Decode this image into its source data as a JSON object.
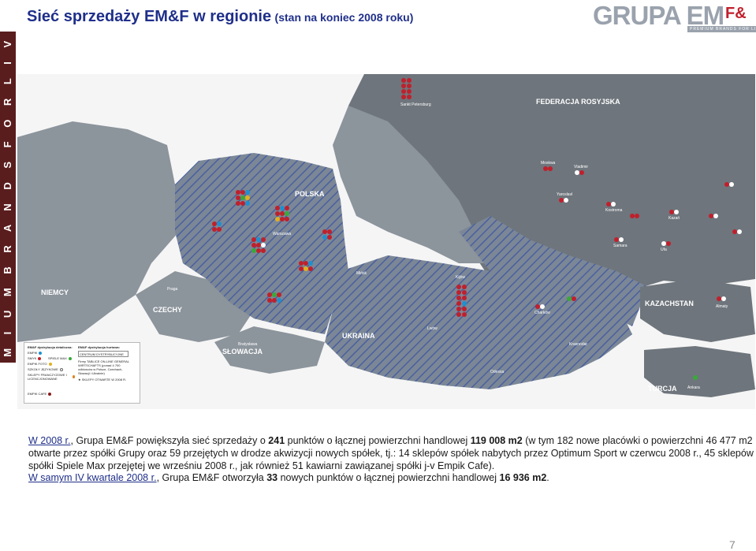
{
  "header": {
    "title_main": "Sieć sprzedaży EM&F w regionie",
    "title_sub": "(stan na koniec 2008 roku)"
  },
  "logo": {
    "name": "GRUPA EM",
    "amp": "F&",
    "tagline": "PREMIUM BRANDS FOR LIVING"
  },
  "sidebar": {
    "text": "P R E M I U M   B R A N D S   F O R   L I V I N G"
  },
  "map": {
    "countries": {
      "russia": "FEDERACJA ROSYJSKA",
      "poland": "POLSKA",
      "germany": "NIEMCY",
      "czech": "CZECHY",
      "slovakia": "SŁOWACJA",
      "ukraine": "UKRAINA",
      "kazakhstan": "KAZACHSTAN",
      "turkey": "TURCJA"
    },
    "cities": {
      "st_petersburg": "Sankt Petersburg",
      "moscow": "Moskwa",
      "vladimir": "Vladimir",
      "yaroslavl": "Yaroslavl",
      "kostroma": "Kostroma",
      "krasnodar": "Krasnodar",
      "kiev": "Kijów",
      "lviv": "Lwów",
      "kharkiv": "Charków",
      "odessa": "Odessa",
      "kazan": "Kazań",
      "samara": "Samara",
      "ufa": "Ufa",
      "almaty": "Almaty",
      "istanbul": "Stambuł",
      "ankara": "Ankara",
      "prague": "Praga",
      "bratislava": "Bratysława",
      "warsaw": "Warszawa",
      "minsk": "Mińsk"
    },
    "colors": {
      "sea": "#f5f5f5",
      "land": "#8c949c",
      "russia": "#6e757c",
      "hatch": "#4a5fa0",
      "store_red": "#c0202c",
      "store_blue": "#1e90d0",
      "store_green": "#3aa83a",
      "store_yellow": "#e0b020",
      "store_white": "#ffffff",
      "store_darkred": "#8a1a1a"
    }
  },
  "legend": {
    "retail_title": "EM&F dystrybucja detaliczna:",
    "wholesale_title": "EM&F dystrybucja hurtowa:",
    "retail_items": [
      {
        "label": "EMPIK",
        "color": "#1e90d0"
      },
      {
        "label": "SMYK",
        "color": "#c0202c"
      },
      {
        "label": "SPIELE MAX",
        "color": "#3aa83a"
      },
      {
        "label": "EMPIK FOTO",
        "color": "#e0b020"
      },
      {
        "label": "SZKOŁY JĘZYKOWE",
        "color": "#ffffff"
      },
      {
        "label": "SKLEPY FRANCZYZOWE I LICENCJONOWANE",
        "color": "#e08020"
      },
      {
        "label": "EMPIK CAFE",
        "color": "#8a1a1a"
      }
    ],
    "wholesale_box": "CENTRUM DYSTRYBUCYJNE",
    "wholesale_note": "Firmy TABLICE ON-LINE GENERAL WIRTSCHAFTS (ponad 4 700 odbiorców w Polsce, Czechach, Słowacji i Ukrainie)",
    "star_note": "SKLEPY OTWARTE W 2008 R."
  },
  "text": {
    "line1_link": "W 2008 r.",
    "line1_a": ", Grupa EM&F powiększyła sieć sprzedaży o ",
    "line1_num1": "241",
    "line1_b": " punktów o łącznej powierzchni handlowej ",
    "line1_num2": "119 008 m2",
    "line1_c": " (w tym 182 nowe placówki o powierzchni 46 477 m2",
    "line2": "otwarte przez spółki Grupy oraz 59 przejętych w drodze akwizycji nowych spółek, tj.: 14 sklepów spółek nabytych przez Optimum Sport  w czerwcu 2008 r., 45 sklepów",
    "line3": "spółki Spiele Max przejętej we wrześniu 2008 r., jak również 51 kawiarni zawiązanej spółki j-v Empik Cafe).",
    "line4_link": "W samym IV kwartale 2008 r.",
    "line4_a": ", Grupa EM&F otworzyła ",
    "line4_num1": "33",
    "line4_b": " nowych punktów o łącznej powierzchni handlowej ",
    "line4_num2": "16 936 m2",
    "line4_c": "."
  },
  "page": {
    "number": "7"
  }
}
